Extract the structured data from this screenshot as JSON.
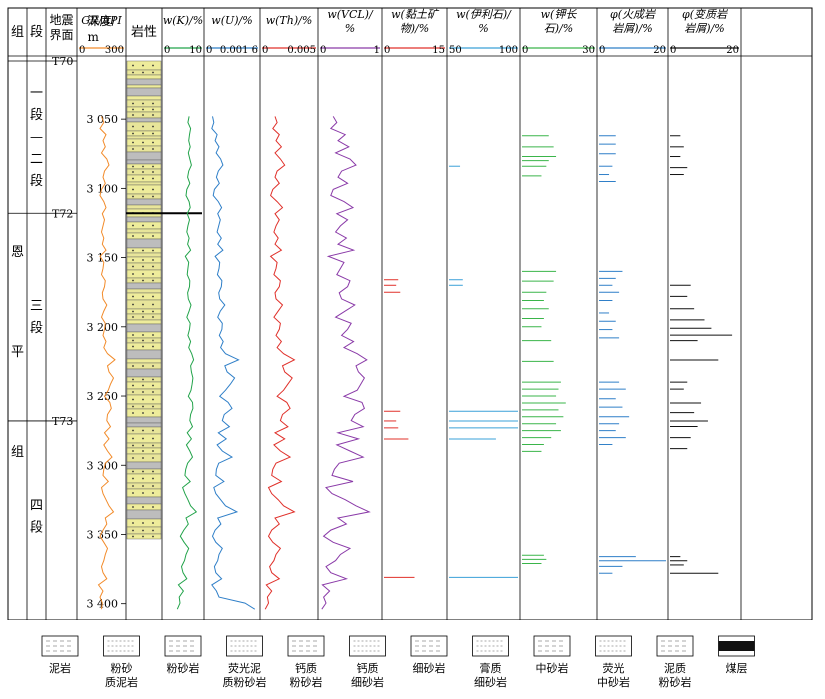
{
  "chart_data": {
    "type": "line",
    "title": "",
    "depth_axis": {
      "label": "深度/m",
      "unit": "m",
      "ylim": [
        3008,
        3406
      ],
      "ticks": [
        3050,
        3100,
        3150,
        3200,
        3250,
        3300,
        3350,
        3400
      ],
      "tick_labels": [
        "3 050",
        "3 100",
        "3 150",
        "3 200",
        "3 250",
        "3 300",
        "3 350",
        "3 400"
      ]
    },
    "columns": {
      "group": {
        "header": "组",
        "name": "恩平组",
        "chars": [
          "恩",
          "平",
          "组"
        ]
      },
      "member": {
        "header": "段",
        "units": [
          {
            "name": "一段—二段",
            "chars": [
              "一",
              "段",
              "—",
              "二",
              "段"
            ],
            "top": 3008,
            "bottom": 3118
          },
          {
            "name": "三段",
            "chars": [
              "三",
              "段"
            ],
            "top": 3118,
            "bottom": 3268
          },
          {
            "name": "四段",
            "chars": [
              "四",
              "段"
            ],
            "top": 3268,
            "bottom": 3406
          }
        ]
      },
      "seismic": {
        "header": [
          "地震",
          "界面"
        ],
        "horizons": [
          {
            "name": "T70",
            "depth": 3008
          },
          {
            "name": "T72",
            "depth": 3118
          },
          {
            "name": "T73",
            "depth": 3268
          }
        ]
      },
      "lithology": {
        "header": "岩性"
      }
    },
    "series": [
      {
        "key": "gr",
        "name": "GR/API",
        "header": [
          "GR/API"
        ],
        "color": "#f28b2a",
        "scale": [
          0,
          300
        ],
        "scale_labels": [
          "0",
          "300"
        ],
        "values": [
          150,
          165,
          140,
          180,
          160,
          175,
          150,
          185,
          200,
          170,
          160,
          175,
          150,
          140,
          165,
          180,
          155,
          170,
          160,
          150,
          165,
          155,
          180,
          140,
          165,
          160,
          150,
          175,
          170,
          155,
          160,
          185,
          165,
          150,
          175,
          170,
          160,
          180,
          165,
          190,
          240,
          190,
          200,
          230,
          210,
          195,
          170,
          205,
          215,
          190,
          185,
          210,
          170,
          200,
          165,
          190,
          220,
          175,
          165,
          160,
          195,
          150,
          160,
          180,
          200,
          230,
          175,
          185,
          160,
          140,
          165,
          190,
          175,
          165,
          150,
          160,
          185,
          130,
          160,
          140,
          155,
          150
        ]
      },
      {
        "key": "k",
        "name": "w(K)/%",
        "header": [
          "w(K)/%"
        ],
        "color": "#22a34a",
        "scale": [
          0,
          10
        ],
        "scale_labels": [
          "0",
          "10"
        ],
        "values": [
          6.6,
          6.3,
          7.0,
          6.7,
          6.5,
          6.9,
          6.4,
          6.8,
          7.2,
          6.5,
          6.2,
          6.8,
          6.0,
          5.8,
          6.6,
          6.9,
          6.1,
          6.7,
          6.3,
          6.0,
          6.6,
          6.2,
          7.0,
          5.6,
          6.5,
          6.3,
          6.1,
          6.8,
          6.7,
          6.2,
          6.4,
          7.1,
          6.6,
          6.0,
          6.9,
          6.7,
          6.3,
          7.0,
          6.5,
          7.3,
          7.8,
          7.0,
          7.2,
          7.6,
          7.4,
          7.1,
          6.4,
          7.5,
          7.6,
          7.0,
          6.8,
          7.5,
          6.1,
          7.2,
          5.9,
          6.8,
          7.5,
          6.2,
          5.7,
          5.5,
          6.9,
          4.9,
          5.5,
          6.3,
          7.0,
          8.5,
          5.8,
          6.4,
          5.2,
          4.3,
          5.3,
          6.5,
          5.8,
          5.4,
          4.6,
          5.0,
          6.0,
          3.8,
          5.1,
          4.0,
          4.2,
          3.5
        ]
      },
      {
        "key": "u",
        "name": "w(U)/%",
        "header": [
          "w(U)/%"
        ],
        "color": "#2f7fc8",
        "scale": [
          0,
          0.0016
        ],
        "scale_labels": [
          "0",
          "0.001 6"
        ],
        "values": [
          0.0002,
          0.00024,
          0.00018,
          0.00034,
          0.00028,
          0.0004,
          0.00031,
          0.00045,
          0.00052,
          0.00038,
          0.00032,
          0.00041,
          0.00026,
          0.00022,
          0.00038,
          0.00048,
          0.00036,
          0.00044,
          0.00039,
          0.00034,
          0.00047,
          0.00036,
          0.00052,
          0.00028,
          0.00042,
          0.0004,
          0.00035,
          0.00049,
          0.00047,
          0.00039,
          0.00042,
          0.00058,
          0.00044,
          0.00036,
          0.0005,
          0.00049,
          0.00041,
          0.00053,
          0.00045,
          0.0006,
          0.001,
          0.00058,
          0.00065,
          0.00088,
          0.00075,
          0.0006,
          0.00042,
          0.00068,
          0.0008,
          0.00056,
          0.0005,
          0.00072,
          0.00038,
          0.00062,
          0.00034,
          0.0005,
          0.0008,
          0.00039,
          0.00032,
          0.0003,
          0.00055,
          0.00024,
          0.0003,
          0.00045,
          0.0006,
          0.00095,
          0.00036,
          0.00046,
          0.00028,
          0.0002,
          0.0003,
          0.0005,
          0.0004,
          0.00036,
          0.00026,
          0.0003,
          0.00048,
          0.00018,
          0.00032,
          0.0004,
          0.0012,
          0.0015
        ]
      },
      {
        "key": "th",
        "name": "w(Th)/%",
        "header": [
          "w(Th)/%"
        ],
        "color": "#e0302a",
        "scale": [
          0,
          0.005
        ],
        "scale_labels": [
          "0",
          "0.005"
        ],
        "values": [
          0.0012,
          0.0014,
          0.001,
          0.0016,
          0.0013,
          0.0018,
          0.0012,
          0.0017,
          0.0021,
          0.0014,
          0.0012,
          0.0016,
          0.001,
          0.0008,
          0.0014,
          0.0019,
          0.0012,
          0.0016,
          0.0013,
          0.0011,
          0.0015,
          0.0012,
          0.0018,
          0.0008,
          0.0014,
          0.0013,
          0.0011,
          0.0017,
          0.0016,
          0.0012,
          0.0013,
          0.0019,
          0.0015,
          0.0011,
          0.0017,
          0.0016,
          0.0013,
          0.0018,
          0.0014,
          0.002,
          0.003,
          0.0019,
          0.0021,
          0.0028,
          0.0024,
          0.002,
          0.0014,
          0.0023,
          0.0026,
          0.0019,
          0.0017,
          0.0024,
          0.0012,
          0.0021,
          0.0011,
          0.0017,
          0.0026,
          0.0013,
          0.001,
          0.0009,
          0.0018,
          0.0006,
          0.0009,
          0.0015,
          0.002,
          0.003,
          0.0012,
          0.0016,
          0.0009,
          0.0006,
          0.001,
          0.0017,
          0.0013,
          0.0011,
          0.0007,
          0.0009,
          0.0016,
          0.0004,
          0.0009,
          0.0005,
          0.0006,
          0.0003
        ]
      },
      {
        "key": "vcl",
        "name": "w(VCL)/%",
        "header": [
          "w(VCL)/",
          "%"
        ],
        "color": "#8a3aa8",
        "scale": [
          0,
          1
        ],
        "scale_labels": [
          "0",
          "1"
        ],
        "values": [
          0.22,
          0.28,
          0.18,
          0.42,
          0.3,
          0.48,
          0.26,
          0.5,
          0.6,
          0.36,
          0.3,
          0.46,
          0.22,
          0.18,
          0.4,
          0.55,
          0.28,
          0.46,
          0.34,
          0.26,
          0.44,
          0.3,
          0.56,
          0.14,
          0.4,
          0.34,
          0.28,
          0.5,
          0.46,
          0.32,
          0.36,
          0.58,
          0.42,
          0.26,
          0.52,
          0.46,
          0.36,
          0.56,
          0.4,
          0.62,
          0.78,
          0.6,
          0.64,
          0.74,
          0.68,
          0.62,
          0.4,
          0.7,
          0.74,
          0.58,
          0.52,
          0.72,
          0.3,
          0.64,
          0.28,
          0.5,
          0.72,
          0.32,
          0.24,
          0.2,
          0.55,
          0.1,
          0.2,
          0.42,
          0.6,
          0.82,
          0.3,
          0.44,
          0.18,
          0.06,
          0.22,
          0.5,
          0.34,
          0.26,
          0.1,
          0.18,
          0.44,
          0.04,
          0.16,
          0.06,
          0.1,
          0.03
        ]
      }
    ],
    "spike_tracks": [
      {
        "key": "clay",
        "name": "w(黏土矿物)/%",
        "header": [
          "w(黏土矿",
          "物)/%"
        ],
        "color": "#e0302a",
        "scale": [
          0,
          15
        ],
        "scale_labels": [
          "0",
          "15"
        ],
        "spikes": [
          [
            3166,
            3.5
          ],
          [
            3170,
            3.0
          ],
          [
            3175,
            4.0
          ],
          [
            3261,
            4.0
          ],
          [
            3268,
            3.0
          ],
          [
            3273,
            3.5
          ],
          [
            3281,
            6.0
          ],
          [
            3381,
            7.5
          ]
        ]
      },
      {
        "key": "illite",
        "name": "w(伊利石)/%",
        "header": [
          "w(伊利石)/",
          "%"
        ],
        "color": "#3aa0d8",
        "scale": [
          50,
          100
        ],
        "scale_labels": [
          "50",
          "100"
        ],
        "spikes": [
          [
            3084,
            58
          ],
          [
            3166,
            60
          ],
          [
            3170,
            60
          ],
          [
            3261,
            100
          ],
          [
            3268,
            100
          ],
          [
            3273,
            100
          ],
          [
            3281,
            84
          ],
          [
            3381,
            100
          ]
        ]
      },
      {
        "key": "kfeld",
        "name": "w(钾长石)/%",
        "header": [
          "w(钾长",
          "石)/%"
        ],
        "color": "#3ab54a",
        "scale": [
          0,
          30
        ],
        "scale_labels": [
          "0",
          "30"
        ],
        "spikes": [
          [
            3062,
            11
          ],
          [
            3070,
            13
          ],
          [
            3077,
            14
          ],
          [
            3080,
            11
          ],
          [
            3084,
            10
          ],
          [
            3091,
            8
          ],
          [
            3160,
            14
          ],
          [
            3167,
            13
          ],
          [
            3175,
            10
          ],
          [
            3181,
            9
          ],
          [
            3187,
            11
          ],
          [
            3194,
            9
          ],
          [
            3200,
            8
          ],
          [
            3210,
            12
          ],
          [
            3225,
            13
          ],
          [
            3240,
            16
          ],
          [
            3245,
            15
          ],
          [
            3250,
            14
          ],
          [
            3255,
            18
          ],
          [
            3260,
            15
          ],
          [
            3265,
            17
          ],
          [
            3270,
            14
          ],
          [
            3275,
            16
          ],
          [
            3280,
            12
          ],
          [
            3285,
            9
          ],
          [
            3290,
            8
          ],
          [
            3365,
            9
          ],
          [
            3368,
            10
          ],
          [
            3371,
            8
          ]
        ]
      },
      {
        "key": "volc",
        "name": "φ(火成岩岩屑)/%",
        "header": [
          "φ(火成岩",
          "岩屑)/%"
        ],
        "color": "#2f7fc8",
        "scale": [
          0,
          20
        ],
        "scale_labels": [
          "0",
          "20"
        ],
        "spikes": [
          [
            3062,
            5
          ],
          [
            3068,
            5
          ],
          [
            3075,
            5
          ],
          [
            3084,
            4
          ],
          [
            3090,
            3
          ],
          [
            3095,
            5
          ],
          [
            3160,
            7
          ],
          [
            3165,
            5
          ],
          [
            3170,
            4
          ],
          [
            3175,
            6
          ],
          [
            3181,
            4
          ],
          [
            3190,
            3
          ],
          [
            3196,
            5
          ],
          [
            3202,
            4
          ],
          [
            3208,
            6
          ],
          [
            3240,
            6
          ],
          [
            3245,
            8
          ],
          [
            3252,
            5
          ],
          [
            3258,
            7
          ],
          [
            3265,
            9
          ],
          [
            3270,
            6
          ],
          [
            3275,
            5
          ],
          [
            3280,
            8
          ],
          [
            3285,
            4
          ],
          [
            3366,
            11
          ],
          [
            3369,
            20
          ],
          [
            3373,
            7
          ],
          [
            3378,
            4
          ]
        ]
      },
      {
        "key": "meta",
        "name": "φ(变质岩岩屑)/%",
        "header": [
          "φ(变质岩",
          "岩屑)/%"
        ],
        "color": "#111111",
        "scale": [
          0,
          20
        ],
        "scale_labels": [
          "0",
          "20"
        ],
        "spikes": [
          [
            3062,
            3
          ],
          [
            3070,
            4
          ],
          [
            3077,
            3
          ],
          [
            3085,
            5
          ],
          [
            3090,
            4
          ],
          [
            3170,
            6
          ],
          [
            3178,
            5
          ],
          [
            3187,
            7
          ],
          [
            3195,
            10
          ],
          [
            3201,
            12
          ],
          [
            3206,
            18
          ],
          [
            3210,
            8
          ],
          [
            3224,
            14
          ],
          [
            3240,
            5
          ],
          [
            3245,
            4
          ],
          [
            3255,
            9
          ],
          [
            3262,
            7
          ],
          [
            3268,
            11
          ],
          [
            3272,
            8
          ],
          [
            3280,
            6
          ],
          [
            3288,
            5
          ],
          [
            3366,
            3
          ],
          [
            3369,
            5
          ],
          [
            3372,
            4
          ],
          [
            3378,
            14
          ]
        ]
      }
    ],
    "legend": [
      {
        "key": "mudstone",
        "label": [
          "泥岩"
        ]
      },
      {
        "key": "silty_mud",
        "label": [
          "粉砂",
          "质泥岩"
        ]
      },
      {
        "key": "siltstone",
        "label": [
          "粉砂岩"
        ]
      },
      {
        "key": "fluor_silt",
        "label": [
          "荧光泥",
          "质粉砂岩"
        ]
      },
      {
        "key": "calc_silt",
        "label": [
          "钙质",
          "粉砂岩"
        ]
      },
      {
        "key": "calc_fine",
        "label": [
          "钙质",
          "细砂岩"
        ]
      },
      {
        "key": "fine_sand",
        "label": [
          "细砂岩"
        ]
      },
      {
        "key": "gyp_fine",
        "label": [
          "膏质",
          "细砂岩"
        ]
      },
      {
        "key": "medium_sand",
        "label": [
          "中砂岩"
        ]
      },
      {
        "key": "fluor_medium",
        "label": [
          "荧光",
          "中砂岩"
        ]
      },
      {
        "key": "muddy_silt",
        "label": [
          "泥质",
          "粉砂岩"
        ]
      },
      {
        "key": "coal",
        "label": [
          "煤层"
        ]
      }
    ]
  }
}
